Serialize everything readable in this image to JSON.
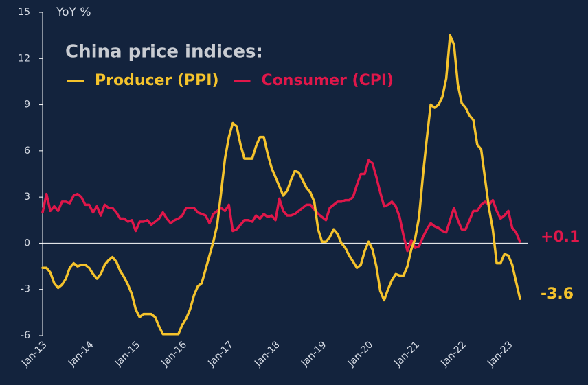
{
  "chart_data": {
    "type": "line",
    "title": "China price indices:",
    "y_label": "YoY %",
    "categories": [
      "Jan-13",
      null,
      null,
      null,
      null,
      null,
      null,
      null,
      null,
      null,
      null,
      null,
      "Jan-14",
      null,
      null,
      null,
      null,
      null,
      null,
      null,
      null,
      null,
      null,
      null,
      "Jan-15",
      null,
      null,
      null,
      null,
      null,
      null,
      null,
      null,
      null,
      null,
      null,
      "Jan-16",
      null,
      null,
      null,
      null,
      null,
      null,
      null,
      null,
      null,
      null,
      null,
      "Jan-17",
      null,
      null,
      null,
      null,
      null,
      null,
      null,
      null,
      null,
      null,
      null,
      "Jan-18",
      null,
      null,
      null,
      null,
      null,
      null,
      null,
      null,
      null,
      null,
      null,
      "Jan-19",
      null,
      null,
      null,
      null,
      null,
      null,
      null,
      null,
      null,
      null,
      null,
      "Jan-20",
      null,
      null,
      null,
      null,
      null,
      null,
      null,
      null,
      null,
      null,
      null,
      "Jan-21",
      null,
      null,
      null,
      null,
      null,
      null,
      null,
      null,
      null,
      null,
      null,
      "Jan-22",
      null,
      null,
      null,
      null,
      null,
      null,
      null,
      null,
      null,
      null,
      null,
      "Jan-23",
      null,
      null,
      null
    ],
    "series": [
      {
        "name": "Producer (PPI)",
        "color": "#f5c32c",
        "end_label": "-3.6",
        "values": [
          -1.6,
          -1.6,
          -1.9,
          -2.6,
          -2.9,
          -2.7,
          -2.3,
          -1.6,
          -1.3,
          -1.5,
          -1.4,
          -1.4,
          -1.6,
          -2.0,
          -2.3,
          -2.0,
          -1.4,
          -1.1,
          -0.9,
          -1.2,
          -1.8,
          -2.2,
          -2.7,
          -3.3,
          -4.3,
          -4.8,
          -4.6,
          -4.6,
          -4.6,
          -4.8,
          -5.4,
          -5.9,
          -5.9,
          -5.9,
          -5.9,
          -5.9,
          -5.3,
          -4.9,
          -4.3,
          -3.4,
          -2.8,
          -2.6,
          -1.7,
          -0.8,
          0.1,
          1.2,
          3.3,
          5.5,
          6.9,
          7.8,
          7.6,
          6.4,
          5.5,
          5.5,
          5.5,
          6.3,
          6.9,
          6.9,
          5.8,
          4.9,
          4.3,
          3.7,
          3.1,
          3.4,
          4.1,
          4.7,
          4.6,
          4.1,
          3.6,
          3.3,
          2.7,
          0.9,
          0.1,
          0.1,
          0.4,
          0.9,
          0.6,
          0.0,
          -0.3,
          -0.8,
          -1.2,
          -1.6,
          -1.4,
          -0.5,
          0.1,
          -0.4,
          -1.5,
          -3.1,
          -3.7,
          -3.0,
          -2.4,
          -2.0,
          -2.1,
          -2.1,
          -1.5,
          -0.4,
          0.3,
          1.7,
          4.4,
          6.8,
          9.0,
          8.8,
          9.0,
          9.5,
          10.7,
          13.5,
          12.9,
          10.3,
          9.1,
          8.8,
          8.3,
          8.0,
          6.4,
          6.1,
          4.2,
          2.3,
          0.9,
          -1.3,
          -1.3,
          -0.7,
          -0.8,
          -1.4,
          -2.5,
          -3.6
        ]
      },
      {
        "name": "Consumer (CPI)",
        "color": "#e0174a",
        "end_label": "+0.1",
        "values": [
          2.0,
          3.2,
          2.1,
          2.4,
          2.1,
          2.7,
          2.7,
          2.6,
          3.1,
          3.2,
          3.0,
          2.5,
          2.5,
          2.0,
          2.4,
          1.8,
          2.5,
          2.3,
          2.3,
          2.0,
          1.6,
          1.6,
          1.4,
          1.5,
          0.8,
          1.4,
          1.4,
          1.5,
          1.2,
          1.4,
          1.6,
          2.0,
          1.6,
          1.3,
          1.5,
          1.6,
          1.8,
          2.3,
          2.3,
          2.3,
          2.0,
          1.9,
          1.8,
          1.3,
          1.9,
          2.1,
          2.3,
          2.1,
          2.5,
          0.8,
          0.9,
          1.2,
          1.5,
          1.5,
          1.4,
          1.8,
          1.6,
          1.9,
          1.7,
          1.8,
          1.5,
          2.9,
          2.1,
          1.8,
          1.8,
          1.9,
          2.1,
          2.3,
          2.5,
          2.5,
          2.2,
          1.9,
          1.7,
          1.5,
          2.3,
          2.5,
          2.7,
          2.7,
          2.8,
          2.8,
          3.0,
          3.8,
          4.5,
          4.5,
          5.4,
          5.2,
          4.3,
          3.3,
          2.4,
          2.5,
          2.7,
          2.4,
          1.7,
          0.5,
          -0.5,
          0.2,
          -0.3,
          -0.2,
          0.4,
          0.9,
          1.3,
          1.1,
          1.0,
          0.8,
          0.7,
          1.5,
          2.3,
          1.5,
          0.9,
          0.9,
          1.5,
          2.1,
          2.1,
          2.5,
          2.7,
          2.5,
          2.8,
          2.1,
          1.6,
          1.8,
          2.1,
          1.0,
          0.7,
          0.1
        ]
      }
    ],
    "ylim": [
      -6,
      15
    ],
    "yticks": [
      -6,
      -3,
      0,
      3,
      6,
      9,
      12,
      15
    ]
  }
}
